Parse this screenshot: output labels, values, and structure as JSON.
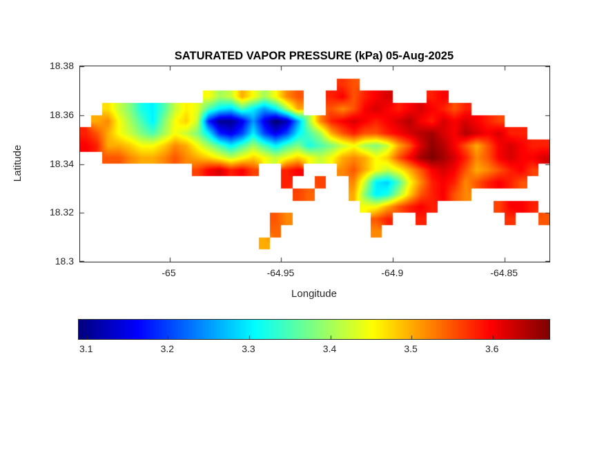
{
  "figure": {
    "background": "#ffffff",
    "text_color": "#262626"
  },
  "chart_data": {
    "type": "heatmap",
    "title": "SATURATED VAPOR PRESSURE (kPa) 05-Aug-2025",
    "xlabel": "Longitude",
    "ylabel": "Latitude",
    "units": "kPa",
    "colormap": "jet",
    "grid_on": false,
    "x_range": [
      -65.04,
      -64.83
    ],
    "y_range": [
      18.3,
      18.38
    ],
    "x_tick_values": [
      -65,
      -64.95,
      -64.9,
      -64.85
    ],
    "x_tick_labels": [
      "-65",
      "-64.95",
      "-64.9",
      "-64.85"
    ],
    "y_tick_values": [
      18.38,
      18.36,
      18.34,
      18.32,
      18.3
    ],
    "y_tick_labels": [
      "18.38",
      "18.36",
      "18.34",
      "18.32",
      "18.3"
    ],
    "clim": [
      3.09,
      3.67
    ],
    "colorbar": {
      "orientation": "horizontal",
      "tick_values": [
        3.1,
        3.2,
        3.3,
        3.4,
        3.5,
        3.6
      ],
      "tick_labels": [
        "3.1",
        "3.2",
        "3.3",
        "3.4",
        "3.5",
        "3.6"
      ]
    },
    "grid_note": "kPa values on a lon x lat grid; rows top (lat 18.38) to bottom (lat 18.30), cols west (-65.04) to east (-64.83); null = water",
    "grid": [
      [
        null,
        null,
        null,
        null,
        null,
        null,
        null,
        null,
        null,
        null,
        null,
        null,
        null,
        null,
        null,
        null,
        null,
        null,
        null,
        null,
        null,
        null,
        null,
        null,
        null,
        null,
        null,
        null,
        null,
        null,
        null,
        null,
        null,
        null,
        null,
        null,
        null,
        null,
        null,
        null,
        null,
        null
      ],
      [
        null,
        null,
        null,
        null,
        null,
        null,
        null,
        null,
        null,
        null,
        null,
        null,
        null,
        null,
        null,
        null,
        null,
        null,
        null,
        null,
        null,
        null,
        null,
        3.57,
        3.55,
        null,
        null,
        null,
        null,
        null,
        null,
        null,
        null,
        null,
        null,
        null,
        null,
        null,
        null,
        null,
        null,
        null
      ],
      [
        null,
        null,
        null,
        null,
        null,
        null,
        null,
        null,
        null,
        null,
        null,
        3.45,
        3.4,
        3.42,
        3.5,
        3.45,
        3.4,
        3.45,
        3.52,
        3.55,
        null,
        null,
        3.58,
        3.6,
        3.55,
        3.58,
        3.6,
        3.62,
        null,
        null,
        null,
        3.58,
        3.6,
        null,
        null,
        null,
        null,
        null,
        null,
        null,
        null,
        null
      ],
      [
        null,
        null,
        3.47,
        3.42,
        3.38,
        3.32,
        3.3,
        3.35,
        3.42,
        3.46,
        3.44,
        3.35,
        3.3,
        3.28,
        3.35,
        3.3,
        3.25,
        3.3,
        3.4,
        3.5,
        null,
        null,
        3.55,
        3.52,
        3.55,
        3.6,
        3.62,
        3.6,
        3.58,
        3.6,
        3.62,
        3.6,
        3.58,
        3.55,
        3.58,
        null,
        null,
        null,
        null,
        null,
        null,
        null
      ],
      [
        null,
        3.5,
        3.52,
        3.45,
        3.4,
        3.35,
        3.3,
        3.38,
        3.45,
        3.48,
        3.42,
        3.18,
        3.1,
        3.1,
        3.15,
        3.25,
        3.15,
        3.08,
        3.12,
        3.25,
        3.4,
        3.52,
        3.58,
        3.6,
        3.62,
        3.6,
        3.58,
        3.6,
        3.62,
        3.64,
        3.6,
        3.58,
        3.62,
        3.6,
        3.62,
        3.6,
        3.58,
        3.56,
        null,
        null,
        null,
        null
      ],
      [
        3.58,
        3.55,
        3.5,
        3.45,
        3.42,
        3.38,
        3.35,
        3.4,
        3.45,
        3.42,
        3.38,
        3.3,
        3.18,
        3.15,
        3.2,
        3.3,
        3.2,
        3.15,
        3.2,
        3.3,
        3.35,
        3.4,
        3.5,
        3.55,
        3.58,
        3.55,
        3.55,
        3.58,
        3.6,
        3.62,
        3.64,
        3.65,
        3.62,
        3.6,
        3.64,
        3.62,
        3.6,
        3.62,
        3.58,
        3.58,
        null,
        null
      ],
      [
        3.6,
        3.58,
        3.5,
        3.5,
        3.48,
        3.45,
        3.45,
        3.48,
        3.52,
        3.5,
        3.45,
        3.4,
        3.35,
        3.3,
        3.35,
        3.4,
        3.35,
        3.3,
        3.35,
        3.38,
        3.32,
        3.35,
        3.38,
        3.42,
        3.45,
        3.4,
        3.38,
        3.42,
        3.5,
        3.55,
        3.62,
        3.66,
        3.64,
        3.6,
        3.55,
        3.5,
        3.55,
        3.6,
        3.62,
        3.6,
        3.58,
        3.58
      ],
      [
        null,
        null,
        3.55,
        3.55,
        3.52,
        3.5,
        3.5,
        3.52,
        3.55,
        3.52,
        3.5,
        3.48,
        3.45,
        3.42,
        3.45,
        3.48,
        3.45,
        3.42,
        3.45,
        3.48,
        3.45,
        3.42,
        3.45,
        3.5,
        3.52,
        3.5,
        3.45,
        3.48,
        3.55,
        3.6,
        3.65,
        3.67,
        3.65,
        3.62,
        3.58,
        3.52,
        3.55,
        3.6,
        3.62,
        3.6,
        3.6,
        3.62
      ],
      [
        null,
        null,
        null,
        null,
        null,
        null,
        null,
        null,
        null,
        null,
        3.56,
        3.6,
        3.62,
        3.58,
        3.6,
        3.56,
        null,
        null,
        3.58,
        3.6,
        null,
        null,
        null,
        3.52,
        3.55,
        3.5,
        3.45,
        3.42,
        3.45,
        3.5,
        3.55,
        3.6,
        3.62,
        3.6,
        3.55,
        3.5,
        3.52,
        3.55,
        3.58,
        3.6,
        3.56,
        null
      ],
      [
        null,
        null,
        null,
        null,
        null,
        null,
        null,
        null,
        null,
        null,
        null,
        null,
        null,
        null,
        null,
        null,
        null,
        null,
        3.58,
        null,
        null,
        3.56,
        null,
        null,
        3.52,
        3.42,
        3.3,
        3.28,
        3.35,
        3.45,
        3.52,
        3.58,
        3.6,
        3.58,
        3.52,
        3.55,
        3.58,
        3.6,
        3.58,
        3.55,
        null,
        null
      ],
      [
        null,
        null,
        null,
        null,
        null,
        null,
        null,
        null,
        null,
        null,
        null,
        null,
        null,
        null,
        null,
        null,
        null,
        null,
        null,
        3.56,
        3.54,
        null,
        null,
        null,
        3.5,
        3.38,
        3.3,
        3.32,
        3.4,
        3.48,
        3.55,
        3.58,
        3.6,
        3.55,
        3.52,
        null,
        null,
        null,
        null,
        null,
        null,
        null
      ],
      [
        null,
        null,
        null,
        null,
        null,
        null,
        null,
        null,
        null,
        null,
        null,
        null,
        null,
        null,
        null,
        null,
        null,
        null,
        null,
        null,
        null,
        null,
        null,
        null,
        null,
        3.45,
        3.45,
        3.5,
        3.55,
        3.58,
        3.6,
        3.58,
        null,
        null,
        null,
        null,
        null,
        3.56,
        3.6,
        3.6,
        3.58,
        null
      ],
      [
        null,
        null,
        null,
        null,
        null,
        null,
        null,
        null,
        null,
        null,
        null,
        null,
        null,
        null,
        null,
        null,
        null,
        3.55,
        3.52,
        null,
        null,
        null,
        null,
        null,
        null,
        null,
        3.55,
        3.58,
        null,
        null,
        3.58,
        null,
        null,
        null,
        null,
        null,
        null,
        null,
        3.57,
        null,
        null,
        3.55
      ],
      [
        null,
        null,
        null,
        null,
        null,
        null,
        null,
        null,
        null,
        null,
        null,
        null,
        null,
        null,
        null,
        null,
        null,
        3.54,
        null,
        null,
        null,
        null,
        null,
        null,
        null,
        null,
        3.52,
        null,
        null,
        null,
        null,
        null,
        null,
        null,
        null,
        null,
        null,
        null,
        null,
        null,
        null,
        null
      ],
      [
        null,
        null,
        null,
        null,
        null,
        null,
        null,
        null,
        null,
        null,
        null,
        null,
        null,
        null,
        null,
        null,
        3.5,
        null,
        null,
        null,
        null,
        null,
        null,
        null,
        null,
        null,
        null,
        null,
        null,
        null,
        null,
        null,
        null,
        null,
        null,
        null,
        null,
        null,
        null,
        null,
        null,
        null
      ],
      [
        null,
        null,
        null,
        null,
        null,
        null,
        null,
        null,
        null,
        null,
        null,
        null,
        null,
        null,
        null,
        null,
        null,
        null,
        null,
        null,
        null,
        null,
        null,
        null,
        null,
        null,
        null,
        null,
        null,
        null,
        null,
        null,
        null,
        null,
        null,
        null,
        null,
        null,
        null,
        null,
        null,
        null
      ]
    ]
  }
}
